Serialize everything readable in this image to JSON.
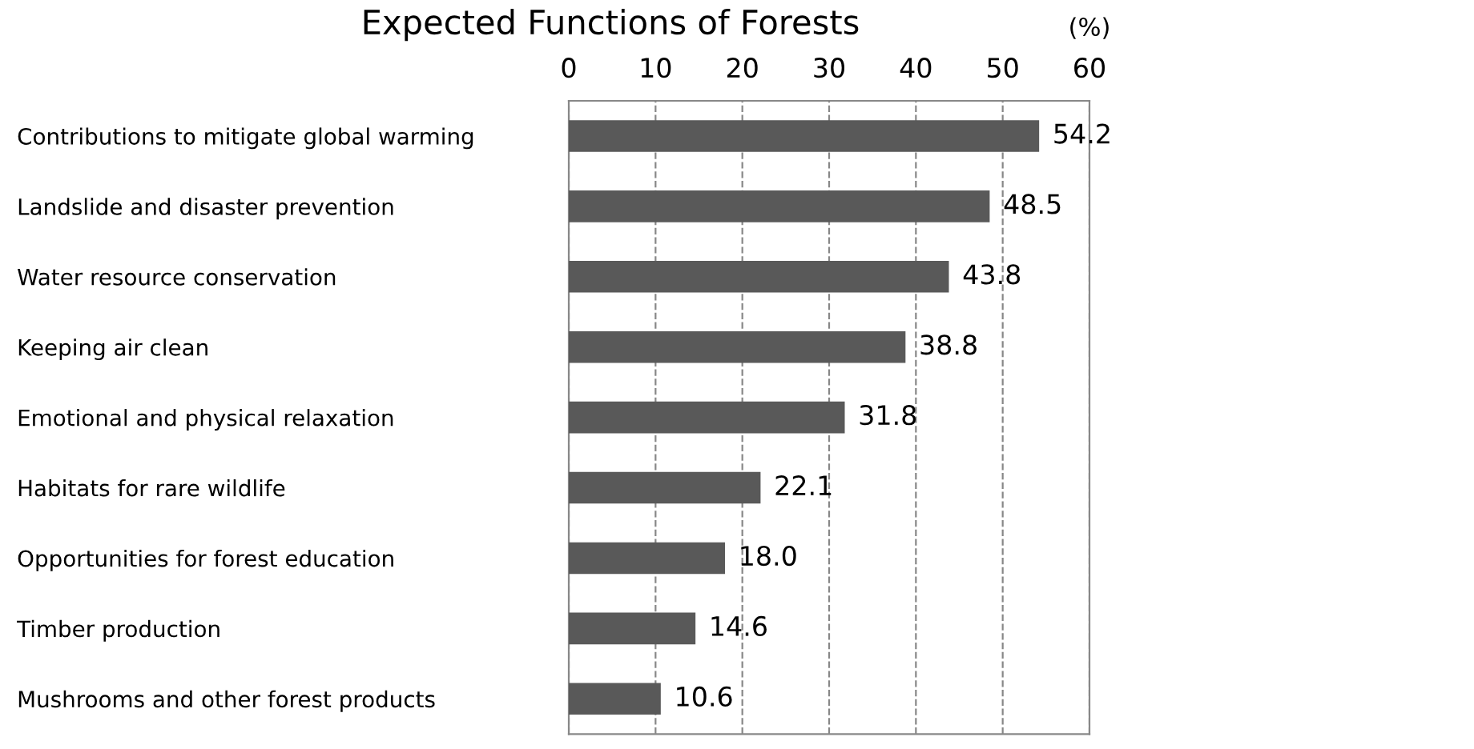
{
  "chart_data": {
    "type": "bar",
    "orientation": "horizontal",
    "title": "Expected Functions of Forests",
    "annotations": [
      "(%)"
    ],
    "categories": [
      "Contributions to mitigate global warming",
      "Landslide and disaster prevention",
      "Water resource conservation",
      "Keeping air clean",
      "Emotional and physical relaxation",
      "Habitats for rare wildlife",
      "Opportunities for forest education",
      "Timber production",
      "Mushrooms and other forest products"
    ],
    "values": [
      54.2,
      48.5,
      43.8,
      38.8,
      31.8,
      22.1,
      18.0,
      14.6,
      10.6
    ],
    "value_labels": [
      "54.2",
      "48.5",
      "43.8",
      "38.8",
      "31.8",
      "22.1",
      "18.0",
      "14.6",
      "10.6"
    ],
    "color": "#595959",
    "xlim": [
      0,
      60
    ],
    "xticks": [
      0,
      10,
      20,
      30,
      40,
      50,
      60
    ],
    "grid": "x"
  }
}
